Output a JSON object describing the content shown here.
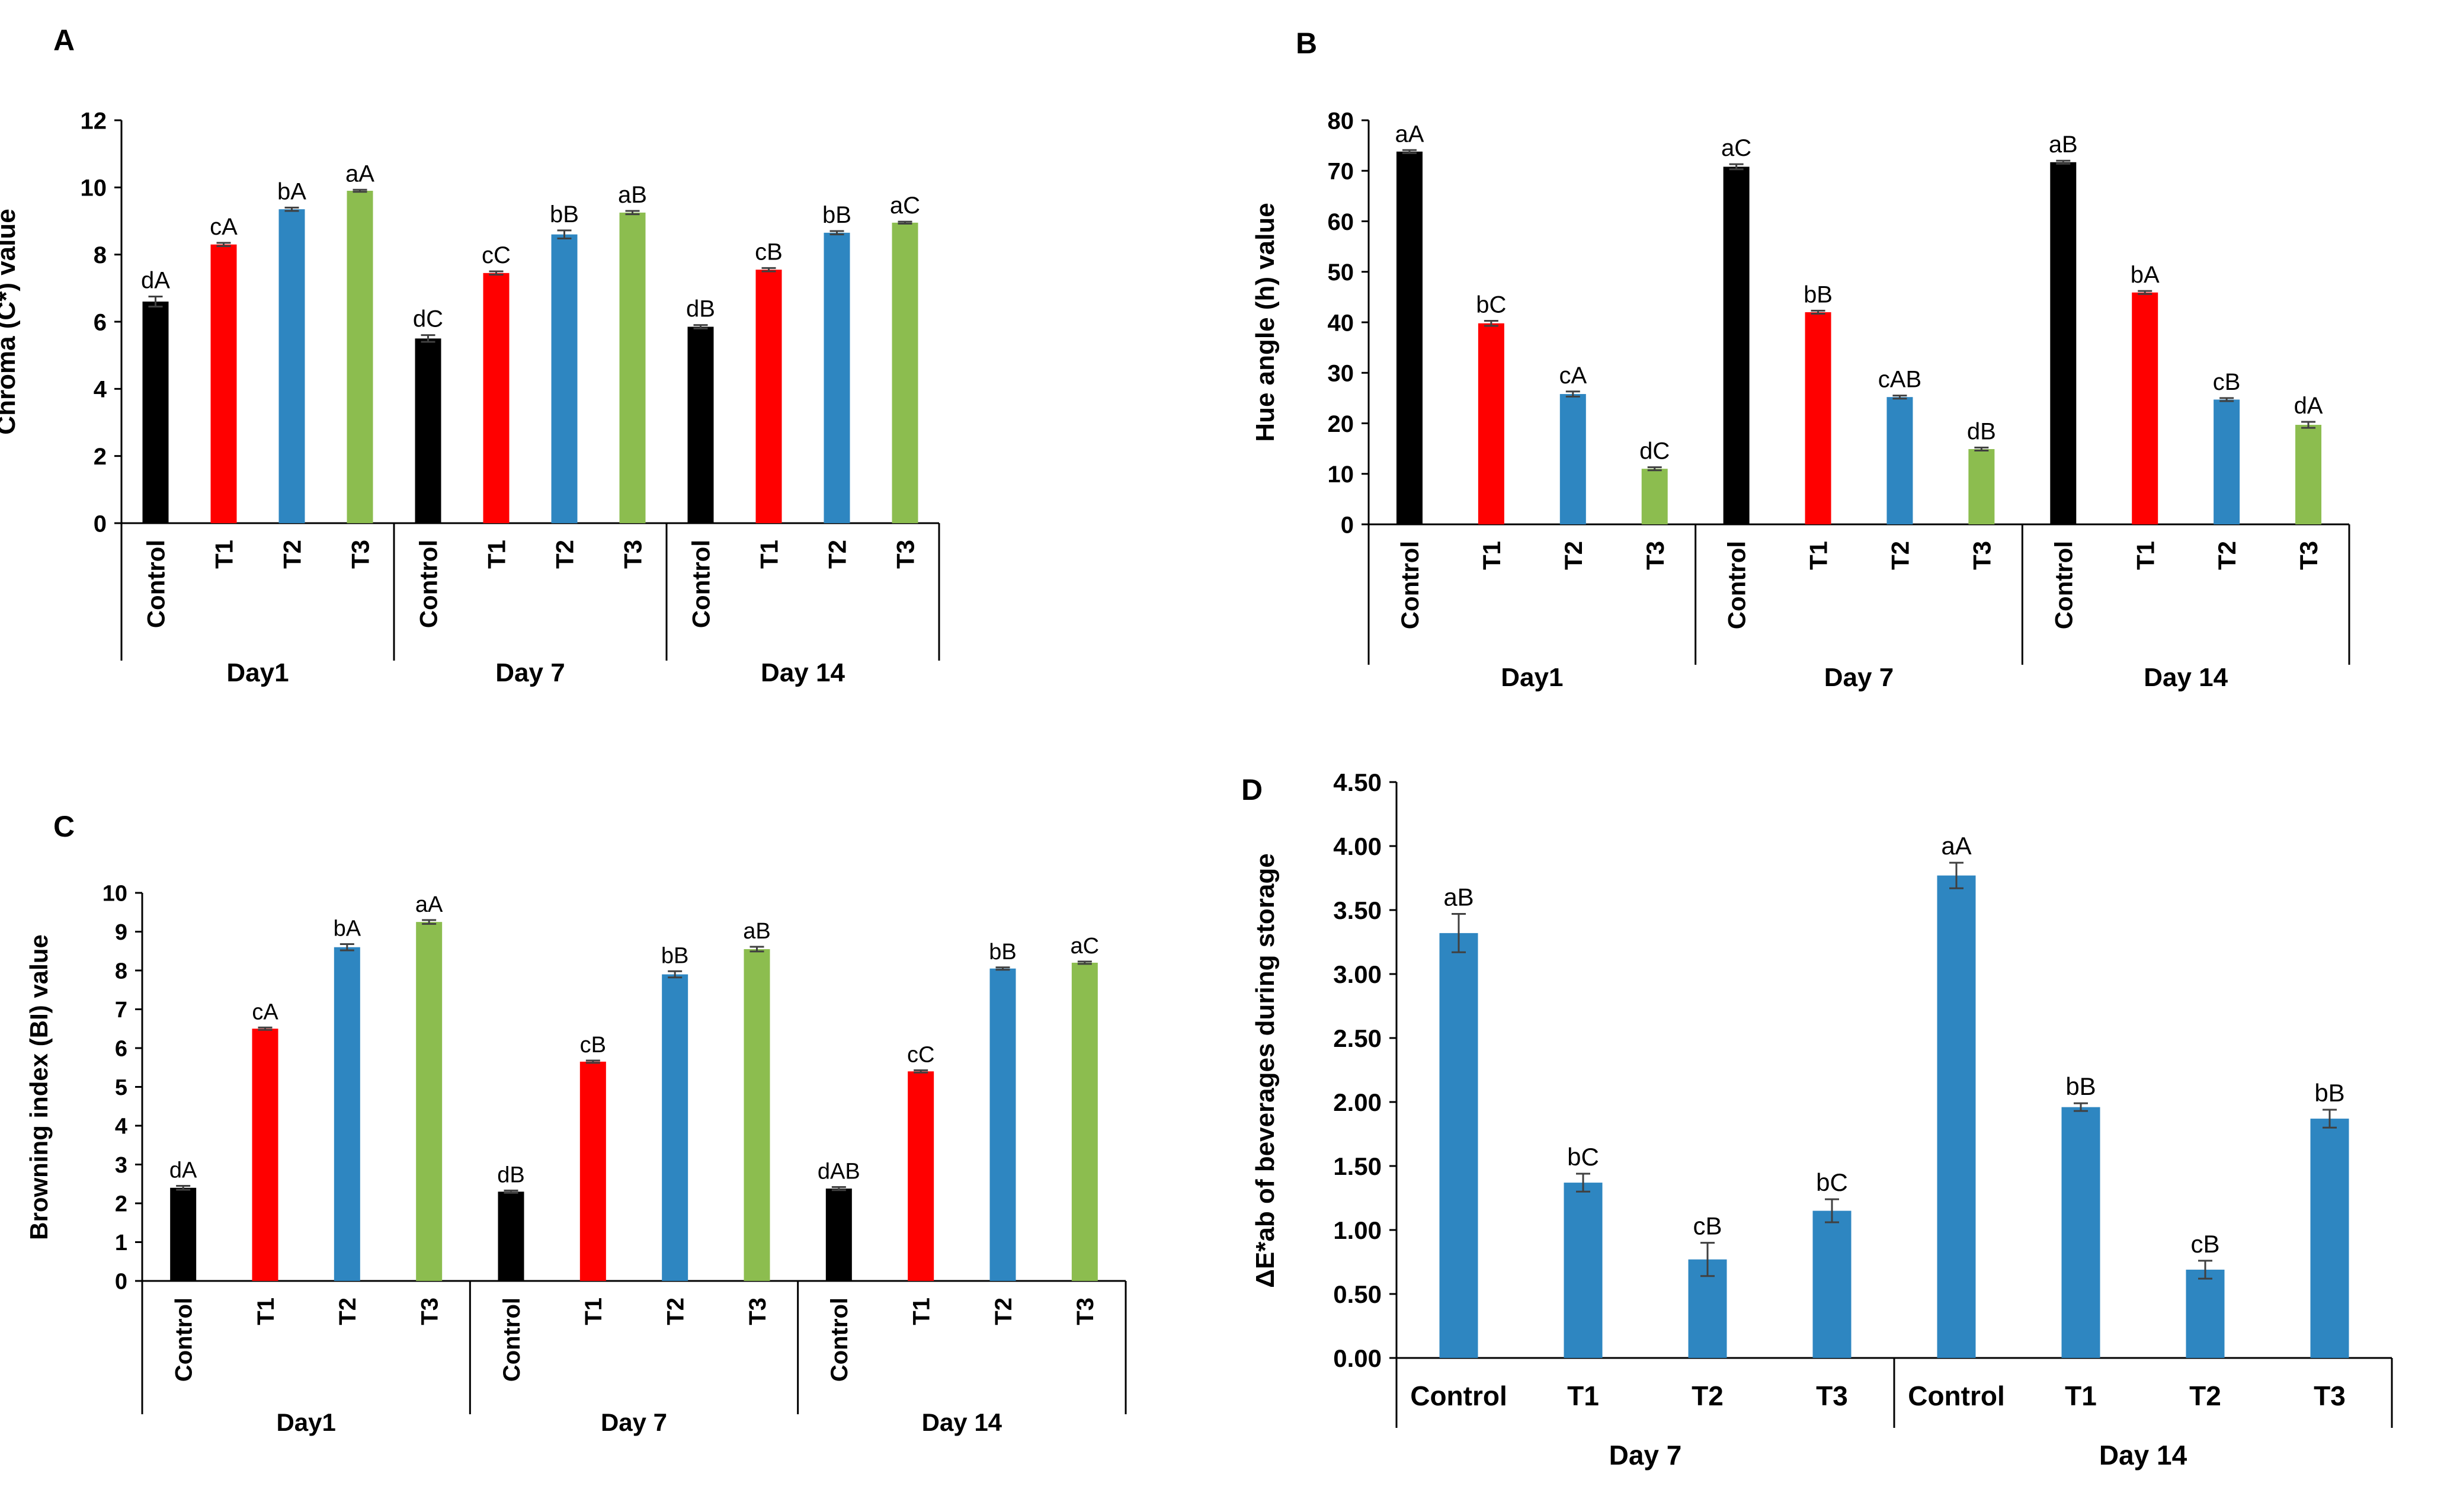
{
  "colors": {
    "Control": "#000000",
    "T1": "#ff0000",
    "T2": "#2e86c1",
    "T3": "#8cbd4f",
    "axis": "#000000",
    "error_bar": "#404040"
  },
  "chart_data": [
    {
      "panel": "A",
      "type": "bar",
      "ylabel": "Chroma (C*) value",
      "ylim": [
        0,
        12
      ],
      "yticks": [
        "0",
        "2",
        "4",
        "6",
        "8",
        "10",
        "12"
      ],
      "groups": [
        "Day1",
        "Day 7",
        "Day 14"
      ],
      "categories": [
        "Control",
        "T1",
        "T2",
        "T3"
      ],
      "series": [
        {
          "group": "Day1",
          "values": [
            6.6,
            8.3,
            9.35,
            9.9
          ],
          "errors": [
            0.15,
            0.05,
            0.05,
            0.03
          ],
          "labels": [
            "dA",
            "cA",
            "bA",
            "aA"
          ]
        },
        {
          "group": "Day 7",
          "values": [
            5.5,
            7.45,
            8.6,
            9.25
          ],
          "errors": [
            0.1,
            0.05,
            0.12,
            0.05
          ],
          "labels": [
            "dC",
            "cC",
            "bB",
            "aB"
          ]
        },
        {
          "group": "Day 14",
          "values": [
            5.85,
            7.55,
            8.65,
            8.95
          ],
          "errors": [
            0.05,
            0.05,
            0.05,
            0.03
          ],
          "labels": [
            "dB",
            "cB",
            "bB",
            "aC"
          ]
        }
      ],
      "grid": false
    },
    {
      "panel": "B",
      "type": "bar",
      "ylabel": "Hue angle (h) value",
      "ylim": [
        0,
        80
      ],
      "yticks": [
        "0",
        "10",
        "20",
        "30",
        "40",
        "50",
        "60",
        "70",
        "80"
      ],
      "groups": [
        "Day1",
        "Day 7",
        "Day 14"
      ],
      "categories": [
        "Control",
        "T1",
        "T2",
        "T3"
      ],
      "series": [
        {
          "group": "Day1",
          "values": [
            73.8,
            39.8,
            25.8,
            11.0
          ],
          "errors": [
            0.3,
            0.5,
            0.5,
            0.3
          ],
          "labels": [
            "aA",
            "bC",
            "cA",
            "dC"
          ]
        },
        {
          "group": "Day 7",
          "values": [
            70.8,
            42.0,
            25.2,
            14.9
          ],
          "errors": [
            0.5,
            0.3,
            0.3,
            0.3
          ],
          "labels": [
            "aC",
            "bB",
            "cAB",
            "dB"
          ]
        },
        {
          "group": "Day 14",
          "values": [
            71.7,
            45.9,
            24.7,
            19.7
          ],
          "errors": [
            0.3,
            0.3,
            0.3,
            0.6
          ],
          "labels": [
            "aB",
            "bA",
            "cB",
            "dA"
          ]
        }
      ],
      "grid": false
    },
    {
      "panel": "C",
      "type": "bar",
      "ylabel": "Browning index (BI) value",
      "ylim": [
        0,
        10
      ],
      "yticks": [
        "0",
        "1",
        "2",
        "3",
        "4",
        "5",
        "6",
        "7",
        "8",
        "9",
        "10"
      ],
      "groups": [
        "Day1",
        "Day 7",
        "Day 14"
      ],
      "categories": [
        "Control",
        "T1",
        "T2",
        "T3"
      ],
      "series": [
        {
          "group": "Day1",
          "values": [
            2.4,
            6.5,
            8.6,
            9.25
          ],
          "errors": [
            0.05,
            0.03,
            0.08,
            0.05
          ],
          "labels": [
            "dA",
            "cA",
            "bA",
            "aA"
          ]
        },
        {
          "group": "Day 7",
          "values": [
            2.3,
            5.65,
            7.9,
            8.55
          ],
          "errors": [
            0.03,
            0.03,
            0.08,
            0.06
          ],
          "labels": [
            "dB",
            "cB",
            "bB",
            "aB"
          ]
        },
        {
          "group": "Day 14",
          "values": [
            2.38,
            5.4,
            8.05,
            8.2
          ],
          "errors": [
            0.04,
            0.03,
            0.03,
            0.03
          ],
          "labels": [
            "dAB",
            "cC",
            "bB",
            "aC"
          ]
        }
      ],
      "grid": false
    },
    {
      "panel": "D",
      "type": "bar",
      "ylabel": "ΔE*ab of beverages during storage",
      "ylim": [
        0,
        4.5
      ],
      "yticks": [
        "0.00",
        "0.50",
        "1.00",
        "1.50",
        "2.00",
        "2.50",
        "3.00",
        "3.50",
        "4.00",
        "4.50"
      ],
      "groups": [
        "Day 7",
        "Day 14"
      ],
      "categories": [
        "Control",
        "T1",
        "T2",
        "T3"
      ],
      "series": [
        {
          "group": "Day 7",
          "values": [
            3.32,
            1.37,
            0.77,
            1.15
          ],
          "errors": [
            0.15,
            0.07,
            0.13,
            0.09
          ],
          "labels": [
            "aB",
            "bC",
            "cB",
            "bC"
          ]
        },
        {
          "group": "Day 14",
          "values": [
            3.77,
            1.96,
            0.69,
            1.87
          ],
          "errors": [
            0.1,
            0.03,
            0.07,
            0.07
          ],
          "labels": [
            "aA",
            "bB",
            "cB",
            "bB"
          ]
        }
      ],
      "grid": false
    }
  ]
}
